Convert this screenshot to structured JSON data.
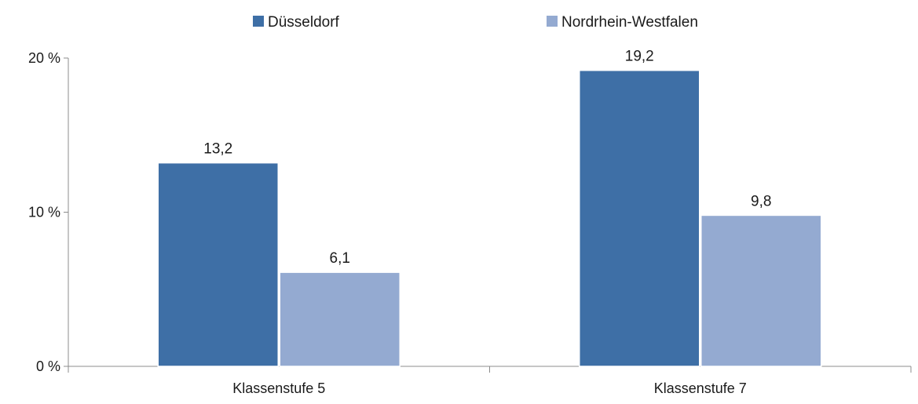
{
  "chart_data": {
    "type": "bar",
    "categories": [
      "Klassenstufe 5",
      "Klassenstufe 7"
    ],
    "series": [
      {
        "name": "Düsseldorf",
        "values": [
          13.2,
          19.2
        ],
        "labels": [
          "13,2",
          "19,2"
        ],
        "color": "#3e6fa6"
      },
      {
        "name": "Nordrhein-Westfalen",
        "values": [
          6.1,
          9.8
        ],
        "labels": [
          "6,1",
          "9,8"
        ],
        "color": "#94aad1"
      }
    ],
    "yticks": [
      {
        "value": 0,
        "label": "0 %"
      },
      {
        "value": 10,
        "label": "10 %"
      },
      {
        "value": 20,
        "label": "20 %"
      }
    ],
    "ylim": [
      0,
      20
    ],
    "title": "",
    "xlabel": "",
    "ylabel": "",
    "legend": "top-center",
    "grid": false
  }
}
